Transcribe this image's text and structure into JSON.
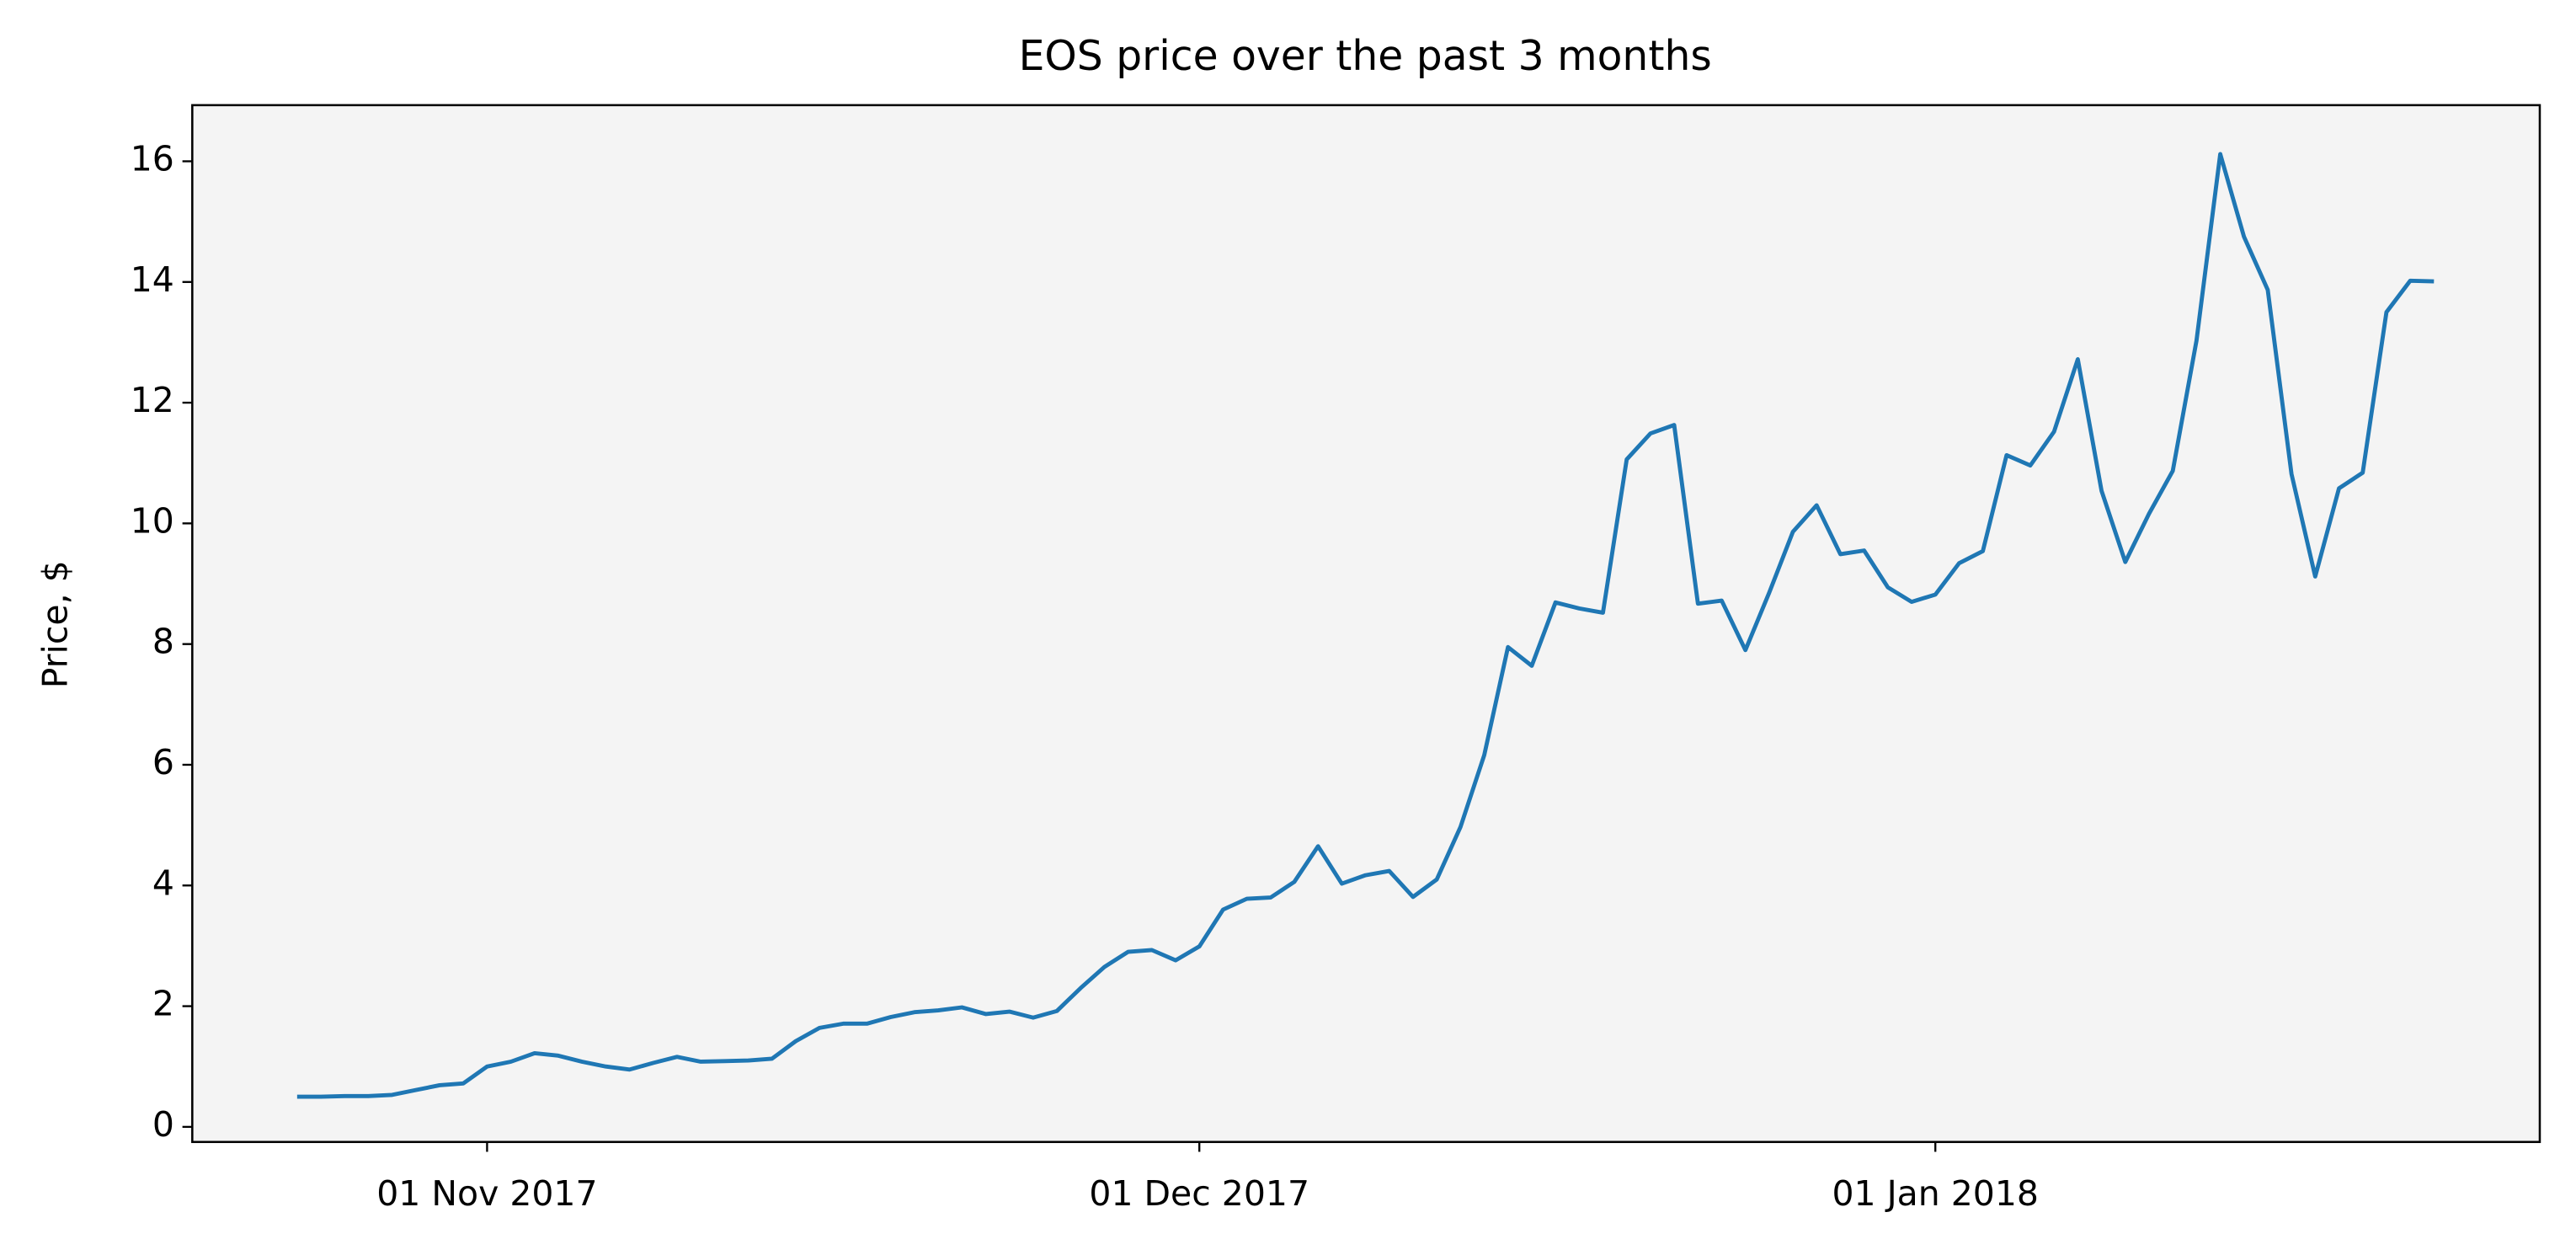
{
  "chart_data": {
    "type": "line",
    "title": "EOS price over the past 3 months",
    "y_label": "Price, $",
    "x": [
      "2017-10-24",
      "2017-10-25",
      "2017-10-26",
      "2017-10-27",
      "2017-10-28",
      "2017-10-29",
      "2017-10-30",
      "2017-10-31",
      "2017-11-01",
      "2017-11-02",
      "2017-11-03",
      "2017-11-04",
      "2017-11-05",
      "2017-11-06",
      "2017-11-07",
      "2017-11-08",
      "2017-11-09",
      "2017-11-10",
      "2017-11-11",
      "2017-11-12",
      "2017-11-13",
      "2017-11-14",
      "2017-11-15",
      "2017-11-16",
      "2017-11-17",
      "2017-11-18",
      "2017-11-19",
      "2017-11-20",
      "2017-11-21",
      "2017-11-22",
      "2017-11-23",
      "2017-11-24",
      "2017-11-25",
      "2017-11-26",
      "2017-11-27",
      "2017-11-28",
      "2017-11-29",
      "2017-11-30",
      "2017-12-01",
      "2017-12-02",
      "2017-12-03",
      "2017-12-04",
      "2017-12-05",
      "2017-12-06",
      "2017-12-07",
      "2017-12-08",
      "2017-12-09",
      "2017-12-10",
      "2017-12-11",
      "2017-12-12",
      "2017-12-13",
      "2017-12-14",
      "2017-12-15",
      "2017-12-16",
      "2017-12-17",
      "2017-12-18",
      "2017-12-19",
      "2017-12-20",
      "2017-12-21",
      "2017-12-22",
      "2017-12-23",
      "2017-12-24",
      "2017-12-25",
      "2017-12-26",
      "2017-12-27",
      "2017-12-28",
      "2017-12-29",
      "2017-12-30",
      "2017-12-31",
      "2018-01-01",
      "2018-01-02",
      "2018-01-03",
      "2018-01-04",
      "2018-01-05",
      "2018-01-06",
      "2018-01-07",
      "2018-01-08",
      "2018-01-09",
      "2018-01-10",
      "2018-01-11",
      "2018-01-12",
      "2018-01-13",
      "2018-01-14",
      "2018-01-15",
      "2018-01-16",
      "2018-01-17",
      "2018-01-18",
      "2018-01-19",
      "2018-01-20",
      "2018-01-21",
      "2018-01-22"
    ],
    "series": [
      {
        "name": "EOS",
        "color": "#1f77b4",
        "values": [
          0.5,
          0.5,
          0.51,
          0.51,
          0.53,
          0.61,
          0.69,
          0.72,
          1.0,
          1.08,
          1.22,
          1.18,
          1.08,
          1.0,
          0.95,
          1.06,
          1.16,
          1.08,
          1.09,
          1.1,
          1.13,
          1.42,
          1.64,
          1.71,
          1.71,
          1.82,
          1.9,
          1.93,
          1.98,
          1.87,
          1.91,
          1.81,
          1.92,
          2.3,
          2.65,
          2.9,
          2.93,
          2.76,
          2.99,
          3.6,
          3.78,
          3.8,
          4.06,
          4.65,
          4.03,
          4.17,
          4.24,
          3.81,
          4.1,
          4.97,
          6.16,
          7.95,
          7.64,
          8.69,
          8.59,
          8.52,
          11.06,
          11.49,
          11.63,
          8.67,
          8.72,
          7.9,
          8.85,
          9.86,
          10.3,
          9.49,
          9.55,
          8.94,
          8.7,
          8.82,
          9.34,
          9.54,
          11.13,
          10.96,
          11.52,
          12.72,
          10.54,
          9.36,
          10.16,
          10.87,
          13.03,
          16.12,
          14.75,
          13.87,
          10.82,
          9.12,
          10.58,
          10.84,
          13.5,
          14.02,
          14.01
        ]
      }
    ],
    "xlim": [
      "2017-10-19T14:00:00Z",
      "2018-01-26T11:00:00Z"
    ],
    "xticks": [
      {
        "value": "2017-11-01",
        "label": "01 Nov 2017"
      },
      {
        "value": "2017-12-01",
        "label": "01 Dec 2017"
      },
      {
        "value": "2018-01-01",
        "label": "01 Jan 2018"
      }
    ],
    "ylim": [
      -0.25,
      16.93
    ],
    "yticks": [
      0,
      2,
      4,
      6,
      8,
      10,
      12,
      14,
      16
    ],
    "background": "#f4f4f4",
    "grid": false
  }
}
